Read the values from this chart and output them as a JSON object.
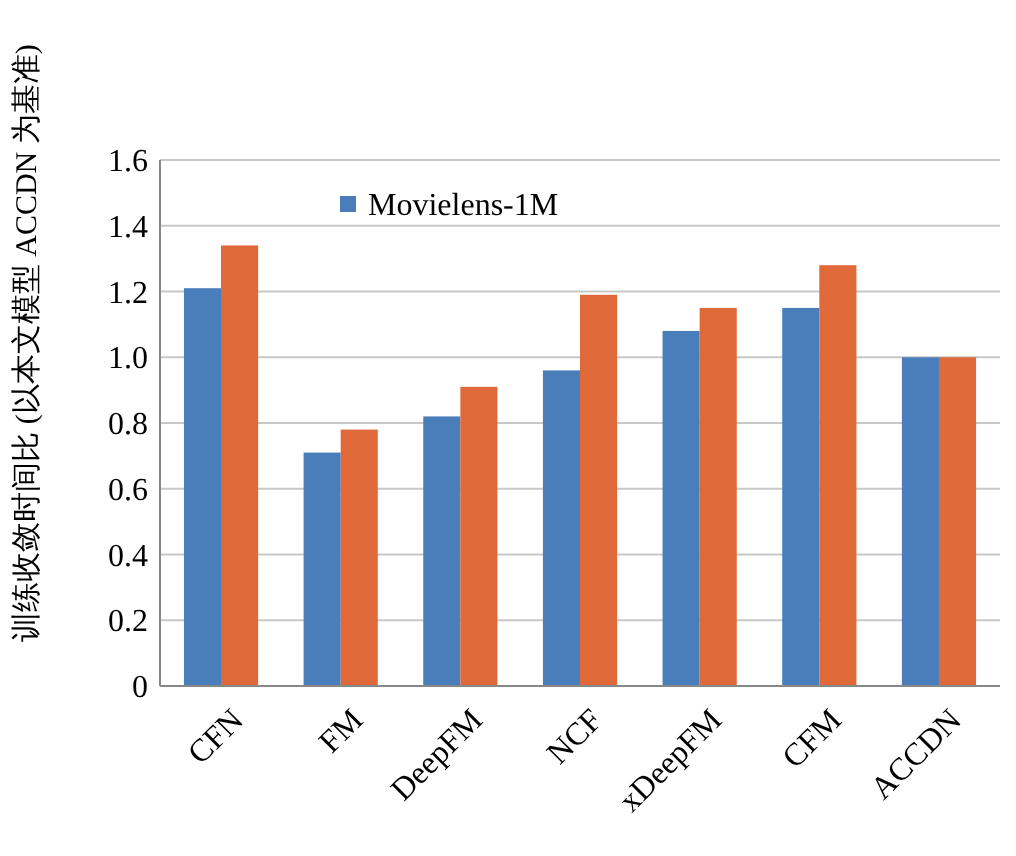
{
  "chart_data": {
    "type": "bar",
    "ylabel": "训练收敛时间比 (以本文模型 ACCDN 为基准)",
    "categories": [
      "CFN",
      "FM",
      "DeepFM",
      "NCF",
      "xDeepFM",
      "CFM",
      "ACCDN"
    ],
    "series": [
      {
        "name": "Movielens-1M",
        "color": "#4a7ebb",
        "values": [
          1.21,
          0.71,
          0.82,
          0.96,
          1.08,
          1.15,
          1.0
        ]
      },
      {
        "color": "#e0693a",
        "values": [
          1.34,
          0.78,
          0.91,
          1.19,
          1.15,
          1.28,
          1.0
        ]
      }
    ],
    "ylim": [
      0,
      1.6
    ],
    "yticks": [
      0,
      0.2,
      0.4,
      0.6,
      0.8,
      {
        "value": 1,
        "label": "1.0"
      },
      1.2,
      1.4,
      1.6
    ],
    "grid": "y",
    "legend": "top left"
  }
}
